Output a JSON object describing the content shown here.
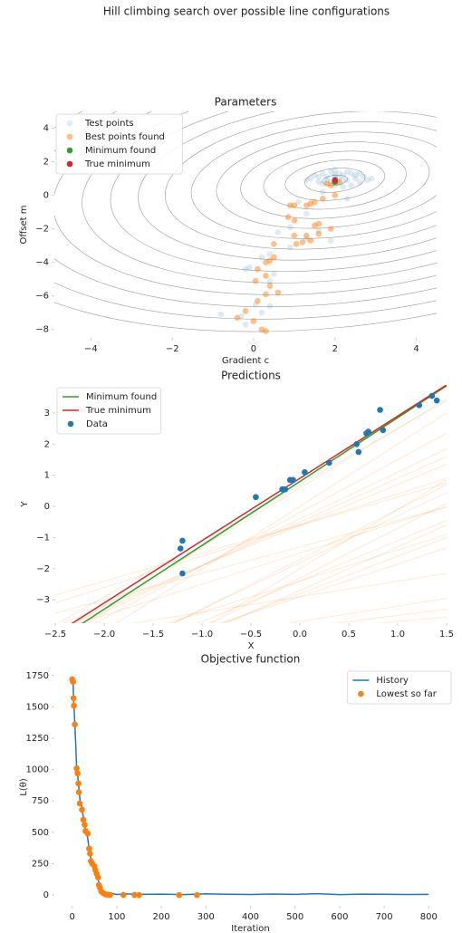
{
  "title": "Hill climbing search over possible line configurations",
  "chart_data": [
    {
      "type": "scatter",
      "title": "Parameters",
      "x_label": "Gradient c",
      "y_label": "Offset m",
      "xlim": [
        -4.9,
        4.5
      ],
      "ylim": [
        -8.5,
        5
      ],
      "xticks": [
        {
          "value": -4,
          "label": "−4"
        },
        {
          "value": -2,
          "label": "−2"
        },
        0,
        2,
        4
      ],
      "yticks": [
        {
          "value": -8,
          "label": "−8"
        },
        {
          "value": -6,
          "label": "−6"
        },
        {
          "value": -4,
          "label": "−4"
        },
        {
          "value": -2,
          "label": "−2"
        },
        0,
        2,
        4
      ],
      "contours": true,
      "legend": "upper left",
      "series": [
        {
          "name": "Test points",
          "color": "#1f77b4",
          "alpha": 0.15,
          "x": [
            -0.8,
            -0.3,
            -0.2,
            0.05,
            0.4,
            0.2,
            -0.2,
            -0.1,
            0.5,
            0.4,
            0.2,
            0.4,
            0.6,
            0.9,
            0.9,
            1.3,
            1.6,
            1.9,
            1.1,
            1.7,
            2.3,
            1.3,
            1.4,
            1.5,
            1.6,
            1.7,
            1.8,
            1.9,
            2.0,
            2.1,
            2.2,
            2.3,
            2.4,
            2.5,
            2.6,
            2.7,
            2.8,
            1.8,
            2.0,
            2.2,
            2.4,
            1.6,
            2.0,
            2.3,
            2.5,
            1.9,
            2.1,
            2.2,
            2.0,
            1.7,
            2.9,
            1.3,
            2.6,
            2.1
          ],
          "values": [
            -7.1,
            -7.2,
            -7.7,
            -6.5,
            -6.6,
            -7.0,
            -4.4,
            -4.3,
            -4.7,
            -5.1,
            -3.7,
            -3.5,
            -2.2,
            -3.1,
            -1.9,
            -2.6,
            -2.1,
            -2.7,
            -0.4,
            0.2,
            -0.2,
            -1.1,
            1.0,
            1.2,
            0.8,
            1.3,
            0.9,
            1.4,
            1.1,
            0.7,
            1.2,
            0.9,
            1.3,
            1.0,
            0.8,
            1.1,
            0.9,
            1.1,
            1.5,
            0.5,
            0.6,
            1.1,
            0.6,
            1.4,
            1.2,
            0.8,
            1.0,
            0.9,
            1.2,
            0.7,
            1.0,
            0.9,
            1.3,
            1.3
          ]
        },
        {
          "name": "Best points found",
          "color": "#ff7f0e",
          "alpha": 0.5,
          "x": [
            2.0,
            1.9,
            2.1,
            1.8,
            2.0,
            1.7,
            1.5,
            1.4,
            1.3,
            1.0,
            0.9,
            1.9,
            1.6,
            1.5,
            1.0,
            0.85,
            1.6,
            1.3,
            1.2,
            1.4,
            1.0,
            1.05,
            0.5,
            0.5,
            0.4,
            0.3,
            0.1,
            0.3,
            0.05,
            0.4,
            0.6,
            0.3,
            0.1,
            -0.2,
            -0.4,
            0.0,
            0.2,
            0.3
          ],
          "values": [
            0.9,
            0.6,
            0.8,
            0.7,
            0.0,
            -0.2,
            -0.4,
            -0.5,
            -0.6,
            -0.6,
            -0.6,
            -2.0,
            -1.7,
            -1.8,
            -1.5,
            -1.3,
            -2.3,
            -2.4,
            -2.8,
            -2.7,
            -2.4,
            -2.9,
            -2.9,
            -3.7,
            -3.9,
            -4.0,
            -4.4,
            -4.8,
            -5.1,
            -5.4,
            -5.8,
            -5.9,
            -6.3,
            -6.9,
            -7.3,
            -7.5,
            -8.0,
            -8.1
          ]
        },
        {
          "name": "Minimum found",
          "color": "#2ca02c",
          "x": [
            2.0
          ],
          "values": [
            0.8
          ]
        },
        {
          "name": "True minimum",
          "color": "#d62728",
          "x": [
            2.0
          ],
          "values": [
            0.9
          ]
        }
      ]
    },
    {
      "type": "line",
      "title": "Predictions",
      "x_label": "X",
      "y_label": "Y",
      "xlim": [
        -2.5,
        1.5
      ],
      "ylim": [
        -3.75,
        3.9
      ],
      "xticks": [
        {
          "value": -2.5,
          "label": "−2.5"
        },
        {
          "value": -2.0,
          "label": "−2.0"
        },
        {
          "value": -1.5,
          "label": "−1.5"
        },
        {
          "value": -1.0,
          "label": "−1.0"
        },
        {
          "value": -0.5,
          "label": "−0.5"
        },
        {
          "value": 0,
          "label": "0.0"
        },
        {
          "value": 0.5,
          "label": "0.5"
        },
        {
          "value": 1.0,
          "label": "1.0"
        },
        {
          "value": 1.5,
          "label": "1.5"
        }
      ],
      "yticks": [
        {
          "value": -3,
          "label": "−3"
        },
        {
          "value": -2,
          "label": "−2"
        },
        {
          "value": -1,
          "label": "−1"
        },
        0,
        1,
        2,
        3
      ],
      "legend": "upper left",
      "series": [
        {
          "name": "Minimum found",
          "color": "#2ca02c",
          "gradient": 2.05,
          "offset": 0.8
        },
        {
          "name": "True minimum",
          "color": "#d62728",
          "gradient": 2.0,
          "offset": 0.9
        },
        {
          "name": "Data",
          "color": "#1f77b4",
          "x": [
            -1.2,
            -1.22,
            -1.2,
            -0.45,
            -0.18,
            -0.15,
            -0.1,
            -0.07,
            0.05,
            0.3,
            0.58,
            0.6,
            0.68,
            0.7,
            0.82,
            0.85,
            1.22,
            1.35,
            1.4
          ],
          "values": [
            -1.1,
            -1.35,
            -2.15,
            0.3,
            0.55,
            0.55,
            0.85,
            0.85,
            1.1,
            1.4,
            2.0,
            1.75,
            2.35,
            2.4,
            3.1,
            2.45,
            3.25,
            3.55,
            3.4
          ]
        }
      ]
    },
    {
      "type": "line",
      "title": "Objective function",
      "x_label": "Iteration",
      "y_label": "L(θ)",
      "xlim": [
        -40,
        840
      ],
      "ylim": [
        -86,
        1806
      ],
      "xticks": [
        0,
        100,
        200,
        300,
        400,
        500,
        600,
        700,
        800
      ],
      "yticks": [
        0,
        250,
        500,
        750,
        1000,
        1250,
        1500,
        1750
      ],
      "legend": "upper right",
      "series": [
        {
          "name": "History",
          "color": "#1f77b4",
          "line": true,
          "x": [
            0,
            2,
            3,
            4,
            6,
            8,
            10,
            12,
            14,
            16,
            18,
            20,
            22,
            25,
            28,
            30,
            33,
            36,
            38,
            40,
            42,
            45,
            48,
            50,
            53,
            56,
            58,
            60,
            62,
            65,
            68,
            72,
            76,
            80,
            90,
            100,
            120,
            150,
            200,
            250,
            300,
            350,
            400,
            450,
            500,
            550,
            600,
            650,
            700,
            750,
            800
          ],
          "values": [
            1720,
            1700,
            1570,
            1510,
            1360,
            1200,
            1010,
            970,
            890,
            820,
            740,
            730,
            700,
            620,
            560,
            520,
            500,
            420,
            370,
            330,
            290,
            260,
            240,
            230,
            190,
            170,
            140,
            90,
            60,
            40,
            25,
            15,
            8,
            6,
            12,
            4,
            9,
            5,
            7,
            3,
            10,
            6,
            4,
            8,
            5,
            11,
            3,
            7,
            6,
            4,
            5
          ]
        },
        {
          "name": "Lowest so far",
          "color": "#ff7f0e",
          "x": [
            0,
            2,
            3,
            4,
            6,
            10,
            12,
            14,
            15,
            17,
            22,
            25,
            28,
            30,
            35,
            38,
            40,
            42,
            45,
            50,
            52,
            55,
            58,
            60,
            62,
            65,
            68,
            72,
            75,
            80,
            85,
            115,
            140,
            150,
            240,
            280
          ],
          "values": [
            1720,
            1700,
            1570,
            1510,
            1360,
            1010,
            970,
            890,
            820,
            730,
            680,
            600,
            560,
            510,
            490,
            370,
            330,
            270,
            250,
            230,
            200,
            170,
            140,
            80,
            60,
            30,
            20,
            10,
            5,
            3,
            2,
            1,
            1,
            0.5,
            0.4,
            0.3
          ]
        }
      ]
    }
  ]
}
